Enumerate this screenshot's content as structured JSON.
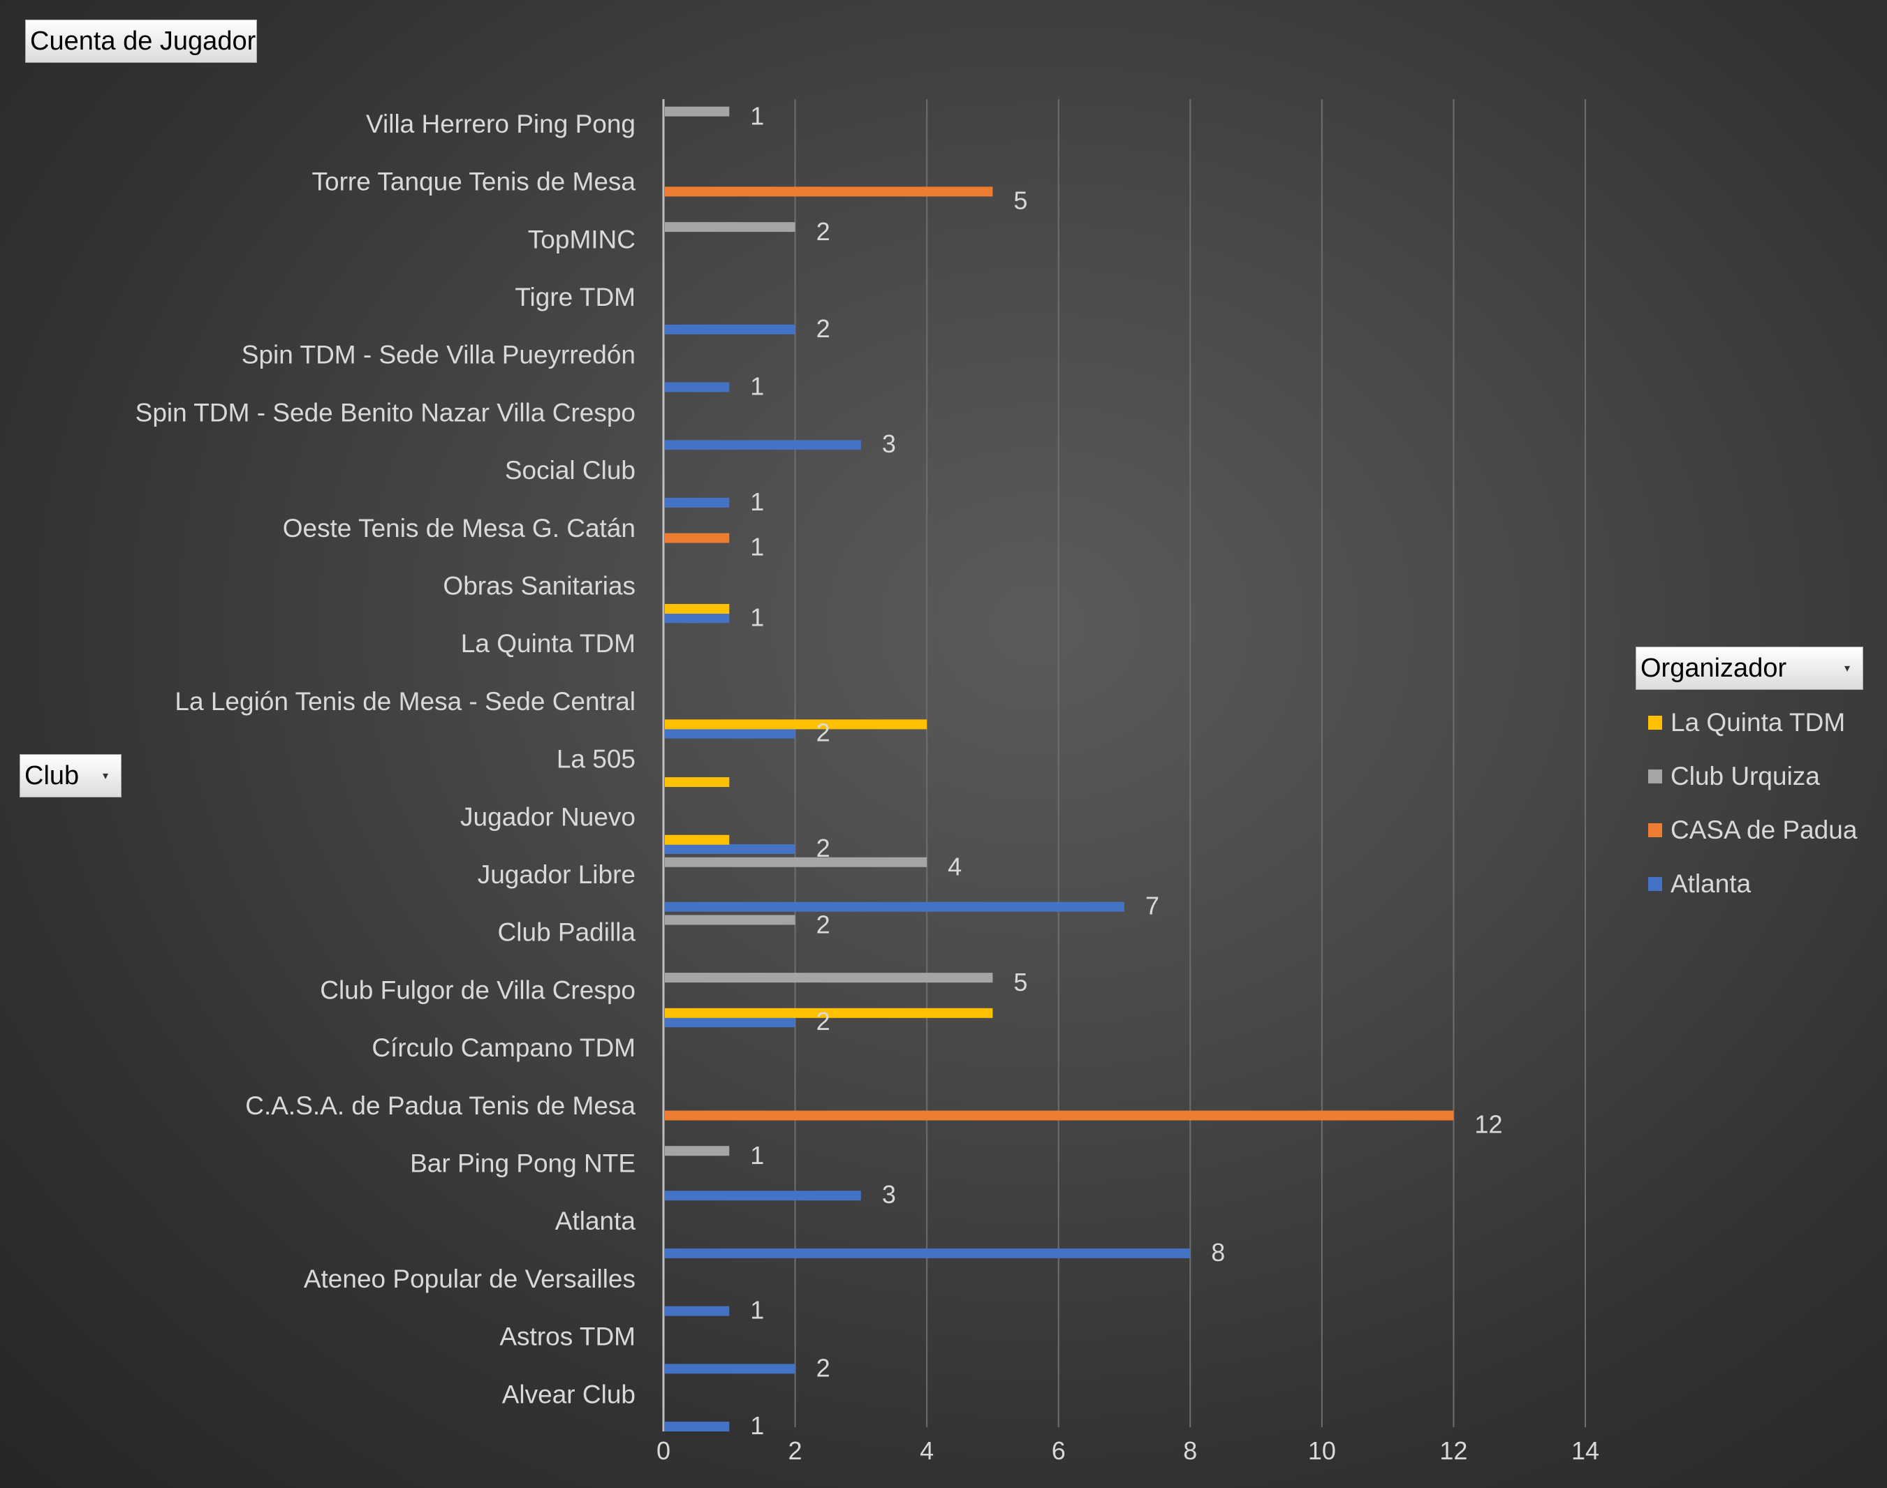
{
  "value_field": "Cuenta de Jugador",
  "axis_field": "Club",
  "legend_field": "Organizador",
  "dropdown_glyph": "▾",
  "chart_data": {
    "type": "bar",
    "orientation": "horizontal",
    "xlim": [
      0,
      14
    ],
    "xticks": [
      "0",
      "2",
      "4",
      "6",
      "8",
      "10",
      "12",
      "14"
    ],
    "grid": true,
    "legend_position": "right",
    "categories": [
      "Alvear Club",
      "Astros TDM",
      "Ateneo Popular de Versailles",
      "Atlanta",
      "Bar Ping Pong NTE",
      "C.A.S.A. de Padua Tenis de Mesa",
      "Círculo Campano TDM",
      "Club Fulgor de Villa Crespo",
      "Club Padilla",
      "Jugador Libre",
      "Jugador Nuevo",
      "La 505",
      "La Legión Tenis de Mesa - Sede Central",
      "La Quinta TDM",
      "Obras Sanitarias",
      "Oeste Tenis de Mesa G. Catán",
      "Social Club",
      "Spin TDM - Sede Benito Nazar Villa Crespo",
      "Spin TDM - Sede Villa Pueyrredón",
      "Tigre TDM",
      "TopMINC",
      "Torre Tanque Tenis de Mesa",
      "Villa Herrero Ping Pong"
    ],
    "series": [
      {
        "name": "Atlanta",
        "color": "#4472c4",
        "values": [
          1,
          2,
          1,
          8,
          3,
          null,
          null,
          2,
          null,
          7,
          2,
          null,
          2,
          null,
          1,
          null,
          1,
          3,
          1,
          2,
          null,
          null,
          null
        ],
        "labels": [
          true,
          true,
          true,
          true,
          true,
          false,
          false,
          true,
          false,
          true,
          true,
          false,
          true,
          false,
          true,
          false,
          true,
          true,
          true,
          true,
          false,
          false,
          false
        ]
      },
      {
        "name": "CASA de Padua",
        "color": "#ed7d31",
        "values": [
          null,
          null,
          null,
          null,
          null,
          12,
          null,
          null,
          null,
          null,
          null,
          null,
          null,
          null,
          null,
          1,
          null,
          null,
          null,
          null,
          null,
          5,
          null
        ],
        "labels": [
          false,
          false,
          false,
          false,
          false,
          true,
          false,
          false,
          false,
          false,
          false,
          false,
          false,
          false,
          false,
          true,
          false,
          false,
          false,
          false,
          false,
          true,
          false
        ]
      },
      {
        "name": "Club Urquiza",
        "color": "#a5a5a5",
        "values": [
          null,
          null,
          null,
          null,
          1,
          null,
          null,
          5,
          2,
          4,
          null,
          null,
          null,
          null,
          null,
          null,
          null,
          null,
          null,
          null,
          2,
          null,
          1
        ],
        "labels": [
          false,
          false,
          false,
          false,
          true,
          false,
          false,
          true,
          true,
          true,
          false,
          false,
          false,
          false,
          false,
          false,
          false,
          false,
          false,
          false,
          true,
          false,
          true
        ]
      },
      {
        "name": "La Quinta TDM",
        "color": "#ffc000",
        "values": [
          null,
          null,
          null,
          null,
          null,
          null,
          5,
          null,
          null,
          1,
          1,
          4,
          null,
          1,
          null,
          null,
          null,
          null,
          null,
          null,
          null,
          null,
          null
        ],
        "labels": [
          false,
          false,
          false,
          false,
          false,
          false,
          false,
          false,
          false,
          false,
          false,
          false,
          false,
          false,
          false,
          false,
          false,
          false,
          false,
          false,
          false,
          false,
          false
        ]
      }
    ],
    "legend_order": [
      "La Quinta TDM",
      "Club Urquiza",
      "CASA de Padua",
      "Atlanta"
    ]
  }
}
